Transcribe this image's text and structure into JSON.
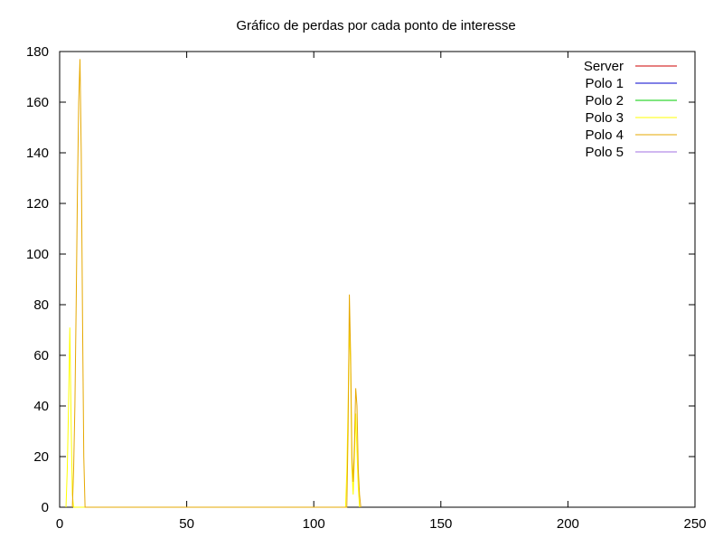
{
  "chart_data": {
    "type": "line",
    "title": "Gráfico de perdas por cada ponto de interesse",
    "xlabel": "",
    "ylabel": "",
    "xlim": [
      0,
      250
    ],
    "ylim": [
      0,
      180
    ],
    "x_ticks": [
      0,
      50,
      100,
      150,
      200,
      250
    ],
    "y_ticks": [
      0,
      20,
      40,
      60,
      80,
      100,
      120,
      140,
      160,
      180
    ],
    "grid": false,
    "legend_position": "top-right",
    "series": [
      {
        "name": "Server",
        "color": "#cc0000",
        "points": []
      },
      {
        "name": "Polo 1",
        "color": "#0000cc",
        "points": []
      },
      {
        "name": "Polo 2",
        "color": "#00cc00",
        "points": []
      },
      {
        "name": "Polo 3",
        "color": "#ffff00",
        "points": [
          [
            2.5,
            0
          ],
          [
            3,
            15
          ],
          [
            3.5,
            40
          ],
          [
            4,
            71
          ],
          [
            4.5,
            35
          ],
          [
            5,
            5
          ],
          [
            5.5,
            0
          ],
          [
            112.5,
            0
          ],
          [
            113,
            14
          ],
          [
            113.5,
            40
          ],
          [
            114,
            72
          ],
          [
            114.5,
            55
          ],
          [
            115,
            15
          ],
          [
            115.5,
            5
          ],
          [
            116,
            20
          ],
          [
            116.5,
            37
          ],
          [
            117,
            22
          ],
          [
            117.5,
            8
          ],
          [
            118,
            0
          ]
        ]
      },
      {
        "name": "Polo 4",
        "color": "#e6a800",
        "points": [
          [
            5,
            0
          ],
          [
            5.5,
            15
          ],
          [
            6,
            40
          ],
          [
            6.5,
            80
          ],
          [
            7,
            125
          ],
          [
            7.5,
            160
          ],
          [
            8,
            177
          ],
          [
            8.5,
            140
          ],
          [
            9,
            75
          ],
          [
            9.5,
            20
          ],
          [
            10,
            0
          ],
          [
            113,
            0
          ],
          [
            113.5,
            30
          ],
          [
            114,
            84
          ],
          [
            114.5,
            60
          ],
          [
            115,
            20
          ],
          [
            115.5,
            10
          ],
          [
            116,
            25
          ],
          [
            116.5,
            47
          ],
          [
            117,
            40
          ],
          [
            117.5,
            15
          ],
          [
            118,
            5
          ],
          [
            118.5,
            0
          ]
        ]
      },
      {
        "name": "Polo 5",
        "color": "#a070e0",
        "points": []
      }
    ]
  }
}
